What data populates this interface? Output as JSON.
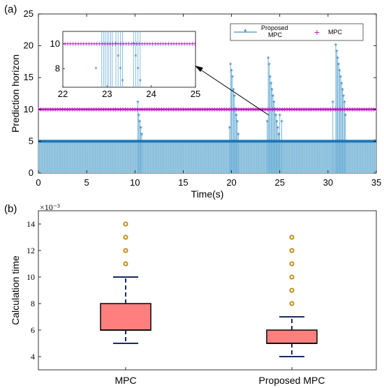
{
  "figure": {
    "panel_a_label": "(a)",
    "panel_b_label": "(b)"
  },
  "chart_data": [
    {
      "type": "line",
      "xlabel": "Time(s)",
      "ylabel": "Prediction horizon",
      "xlim": [
        0,
        35
      ],
      "ylim": [
        0,
        25
      ],
      "xticks": [
        "0",
        "5",
        "10",
        "15",
        "20",
        "25",
        "30",
        "35"
      ],
      "yticks": [
        "0",
        "5",
        "10",
        "15",
        "20",
        "25"
      ],
      "grid": false,
      "legend_position": "top-right",
      "series": [
        {
          "name": "Proposed MPC",
          "style": "stem-asterisk",
          "color": "#1f77b4",
          "fill_color": "#9ecae1",
          "baseline": 5,
          "peaks": [
            {
              "x": [
                10.3,
                10.4,
                10.5,
                10.6,
                10.7
              ],
              "y": [
                11,
                9,
                8,
                7,
                6
              ]
            },
            {
              "x": [
                19.8,
                19.9,
                20.0,
                20.1,
                20.2,
                20.3,
                20.4,
                20.5,
                20.6,
                20.7
              ],
              "y": [
                7,
                17,
                16,
                15,
                13,
                12,
                10,
                9,
                8,
                6
              ]
            },
            {
              "x": [
                23.7,
                23.8,
                23.9,
                24.0,
                24.1,
                24.2,
                24.3,
                24.4,
                24.5,
                24.6,
                24.7,
                24.8,
                24.9,
                25.0,
                25.2
              ],
              "y": [
                8,
                18,
                17,
                15,
                14,
                13,
                12,
                11,
                10,
                9,
                8,
                7,
                6,
                9,
                8
              ]
            },
            {
              "x": [
                30.5,
                30.8,
                30.9,
                31.0,
                31.1,
                31.2,
                31.3,
                31.4,
                31.5,
                31.6,
                31.7,
                31.8
              ],
              "y": [
                11,
                20,
                19,
                18,
                17,
                16,
                15,
                14,
                13,
                12,
                11,
                9
              ]
            }
          ]
        },
        {
          "name": "MPC",
          "style": "plus",
          "color": "#c020c0",
          "constant": 10
        }
      ],
      "inset": {
        "xlim": [
          22,
          25
        ],
        "ylim": [
          6.5,
          11
        ],
        "xticks": [
          "22",
          "23",
          "24",
          "25"
        ],
        "yticks": [
          "8",
          "10"
        ],
        "proposed_points": [
          {
            "x": 22.75,
            "y": 8
          },
          {
            "x": 23.2,
            "y": 10
          },
          {
            "x": 23.25,
            "y": 9
          },
          {
            "x": 23.3,
            "y": 8
          },
          {
            "x": 23.35,
            "y": 7
          },
          {
            "x": 23.6,
            "y": 10
          },
          {
            "x": 23.65,
            "y": 9
          },
          {
            "x": 23.7,
            "y": 8
          },
          {
            "x": 23.75,
            "y": 7
          }
        ],
        "stems_x": [
          22.88,
          22.92,
          22.96,
          23.0,
          23.04,
          23.08,
          23.12,
          23.2,
          23.25,
          23.3,
          23.35,
          23.6,
          23.65,
          23.7,
          23.75
        ]
      }
    },
    {
      "type": "box",
      "xlabel": "",
      "ylabel": "Calculation time",
      "y_exponent_label": "×10⁻³",
      "ylim": [
        3,
        15
      ],
      "yticks": [
        "4",
        "6",
        "8",
        "10",
        "12",
        "14"
      ],
      "categories": [
        "MPC",
        "Proposed MPC"
      ],
      "box_color": "#ff7f7f",
      "outlier_color": "#b8860b",
      "boxes": [
        {
          "name": "MPC",
          "whisker_low": 5,
          "q1": 6,
          "median": 6,
          "q3": 8,
          "whisker_high": 10,
          "outliers": [
            11,
            12,
            13,
            14
          ]
        },
        {
          "name": "Proposed MPC",
          "whisker_low": 4,
          "q1": 5,
          "median": 5,
          "q3": 6,
          "whisker_high": 7,
          "outliers": [
            8,
            9,
            10,
            11,
            12,
            13
          ]
        }
      ]
    }
  ]
}
